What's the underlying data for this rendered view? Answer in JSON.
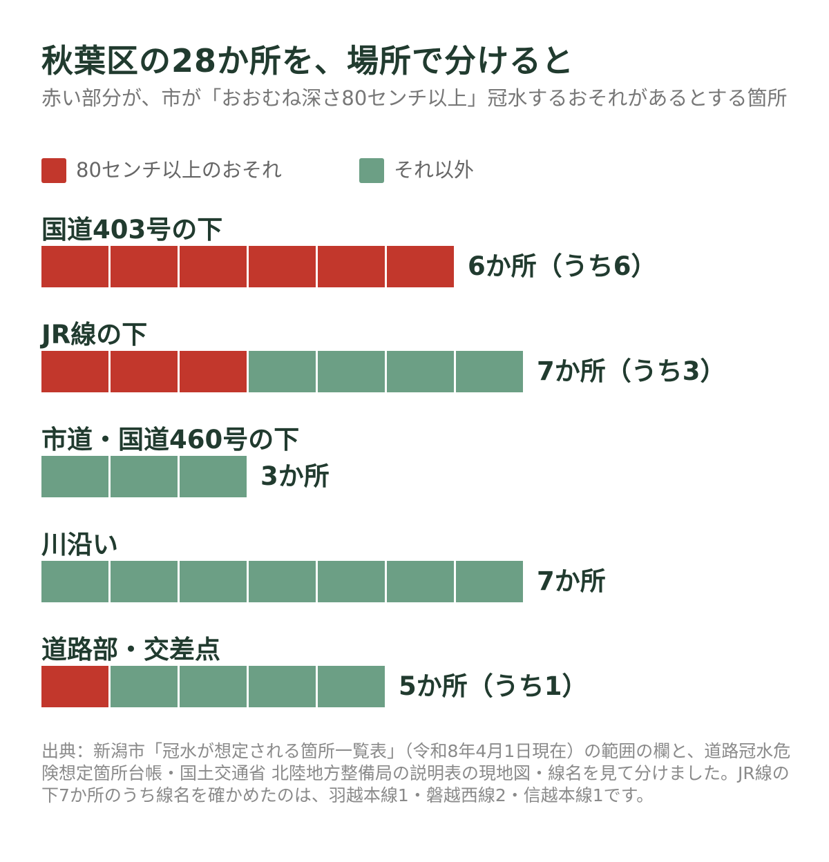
{
  "title": "秋葉区の28か所を、場所で分けると",
  "subtitle": "赤い部分が、市が「おおむね深さ80センチ以上」冠水するおそれがあるとする箇所",
  "colors": {
    "red": "#c2372c",
    "green": "#6c9f85"
  },
  "legend": [
    {
      "label": "80センチ以上のおそれ",
      "color": "#c2372c"
    },
    {
      "label": "それ以外",
      "color": "#6c9f85"
    }
  ],
  "chart_data": {
    "type": "bar",
    "unit_label": "か所",
    "categories": [
      "国道403号の下",
      "JR線の下",
      "市道・国道460号の下",
      "川沿い",
      "道路部・交差点"
    ],
    "series": [
      {
        "name": "80センチ以上のおそれ",
        "values": [
          6,
          3,
          0,
          0,
          1
        ]
      },
      {
        "name": "それ以外",
        "values": [
          0,
          4,
          3,
          7,
          4
        ]
      }
    ],
    "totals": [
      6,
      7,
      3,
      7,
      5
    ],
    "count_labels": [
      "6か所（うち6）",
      "7か所（うち3）",
      "3か所",
      "7か所",
      "5か所（うち1）"
    ]
  },
  "source": "出典：新潟市「冠水が想定される箇所一覧表」（令和8年4月1日現在）の範囲の欄と、道路冠水危険想定箇所台帳・国土交通省 北陸地方整備局の説明表の現地図・線名を見て分けました。JR線の下7か所のうち線名を確かめたのは、羽越本線1・磐越西線2・信越本線1です。"
}
